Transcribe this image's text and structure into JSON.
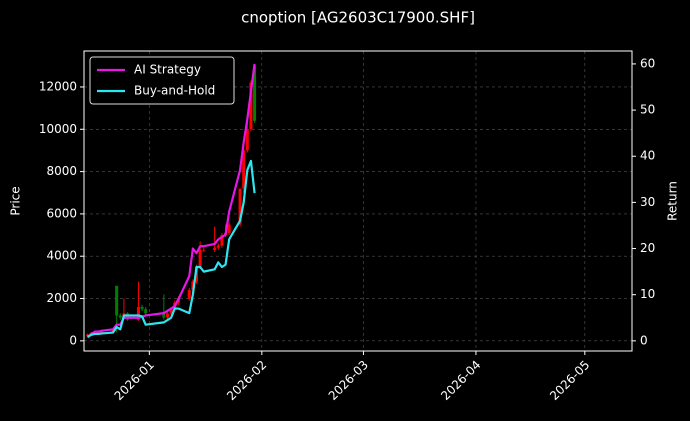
{
  "chart_data": {
    "type": "candlestick",
    "title": "cnoption [AG2603C17900.SHF]",
    "ylabel": "Price",
    "y2label": "Return",
    "x": [
      "2025-12-15",
      "2025-12-16",
      "2025-12-17",
      "2025-12-18",
      "2025-12-19",
      "2025-12-22",
      "2025-12-23",
      "2025-12-24",
      "2025-12-25",
      "2025-12-26",
      "2025-12-29",
      "2025-12-30",
      "2025-12-31",
      "2026-01-05",
      "2026-01-06",
      "2026-01-07",
      "2026-01-08",
      "2026-01-09",
      "2026-01-12",
      "2026-01-13",
      "2026-01-14",
      "2026-01-15",
      "2026-01-16",
      "2026-01-19",
      "2026-01-20",
      "2026-01-21",
      "2026-01-22",
      "2026-01-23",
      "2026-01-26",
      "2026-01-27",
      "2026-01-28",
      "2026-01-29",
      "2026-01-30"
    ],
    "open": [
      220,
      300,
      380,
      350,
      400,
      420,
      2600,
      1200,
      1100,
      1300,
      1000,
      1600,
      1500,
      1300,
      1100,
      1300,
      1500,
      1800,
      2000,
      2400,
      2800,
      3500,
      4300,
      4300,
      4400,
      4500,
      5000,
      5100,
      5500,
      7200,
      9000,
      10000,
      13000
    ],
    "high": [
      350,
      420,
      420,
      450,
      450,
      550,
      2600,
      1300,
      2000,
      1350,
      2800,
      1700,
      1600,
      2200,
      1400,
      1600,
      1900,
      2100,
      2500,
      2900,
      3600,
      4700,
      4400,
      5400,
      4600,
      5100,
      5500,
      5600,
      7200,
      9500,
      10700,
      12300,
      13000
    ],
    "low": [
      180,
      280,
      320,
      320,
      360,
      400,
      400,
      1000,
      1000,
      950,
      950,
      1400,
      1200,
      1000,
      1000,
      1200,
      1400,
      1700,
      1900,
      2300,
      2700,
      3400,
      4200,
      4200,
      4300,
      4400,
      4900,
      5000,
      5400,
      7000,
      8900,
      9900,
      10300
    ],
    "close": [
      300,
      380,
      350,
      400,
      420,
      500,
      1200,
      1100,
      1300,
      1000,
      1600,
      1500,
      1300,
      1100,
      1300,
      1500,
      1800,
      2000,
      2400,
      2800,
      3500,
      4300,
      4300,
      4400,
      4500,
      5000,
      5100,
      5500,
      7200,
      9000,
      10000,
      12200,
      10400
    ],
    "up_color": "#ff0000",
    "down_color": "#008000",
    "series": [
      {
        "name": "AI Strategy",
        "color": "#e817e8",
        "axis": "y2",
        "values": [
          0.7,
          1.5,
          2,
          2,
          2.2,
          2.5,
          3.5,
          3.5,
          5,
          5,
          5,
          5.2,
          5.5,
          6,
          6.5,
          7,
          7.5,
          9,
          14,
          20,
          19,
          20.5,
          20.5,
          21,
          22,
          22.5,
          23,
          28,
          37,
          43,
          48,
          54,
          60
        ]
      },
      {
        "name": "Buy-and-Hold",
        "color": "#2de6f0",
        "axis": "y2",
        "values": [
          0.9,
          1.3,
          1.5,
          1.5,
          1.6,
          1.8,
          3,
          2.5,
          5.5,
          5.5,
          5.5,
          5.3,
          3.5,
          4,
          4.5,
          5,
          7,
          7,
          6,
          10,
          16,
          16,
          15,
          15.5,
          17,
          16,
          16.5,
          22,
          26,
          30,
          37,
          39,
          32
        ]
      }
    ],
    "xlim": [
      "2025-12-14",
      "2026-05-14"
    ],
    "xticks": [
      {
        "value": "2026-01-01",
        "label": "2026-01"
      },
      {
        "value": "2026-02-01",
        "label": "2026-02"
      },
      {
        "value": "2026-03-01",
        "label": "2026-03"
      },
      {
        "value": "2026-04-01",
        "label": "2026-04"
      },
      {
        "value": "2026-05-01",
        "label": "2026-05"
      }
    ],
    "ylim": [
      -480,
      13700
    ],
    "yticks": [
      0,
      2000,
      4000,
      6000,
      8000,
      10000,
      12000
    ],
    "y2lim": [
      -2.2,
      62.8
    ],
    "y2ticks": [
      0,
      10,
      20,
      30,
      40,
      50,
      60
    ],
    "grid": true,
    "legend": "upper-left"
  }
}
